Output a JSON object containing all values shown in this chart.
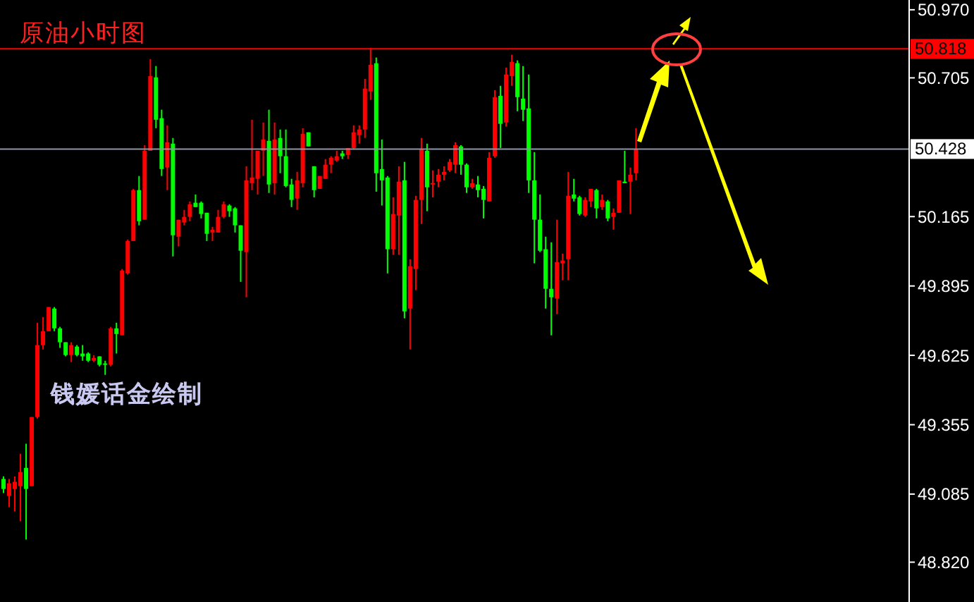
{
  "chart_data": {
    "type": "candlestick",
    "title": "原油小时图",
    "annotations": [
      "钱媛话金绘制"
    ],
    "categories": [
      null,
      null,
      null,
      null,
      null,
      null,
      null,
      null,
      null,
      null,
      null,
      null,
      null,
      null,
      null,
      null,
      null,
      null,
      null,
      null,
      null,
      null,
      null,
      null,
      null,
      null,
      null,
      null,
      null,
      null,
      null,
      null,
      null,
      null,
      null,
      null,
      null,
      null,
      null,
      null,
      null,
      null,
      null,
      null,
      null,
      null,
      null,
      null,
      null,
      null,
      null,
      null,
      null,
      null,
      null,
      null,
      null,
      null,
      null,
      null,
      null,
      null,
      null,
      null,
      null,
      null,
      null,
      null,
      null,
      null,
      null,
      null,
      null,
      null,
      null,
      null,
      null,
      null,
      null,
      null,
      null,
      null,
      null,
      null,
      null,
      null,
      null,
      null,
      null,
      null,
      null,
      null,
      null,
      null,
      null,
      null,
      null,
      null,
      null,
      null,
      null,
      null,
      null,
      null,
      null,
      null,
      null,
      null,
      null,
      null,
      null,
      null,
      null,
      null,
      null,
      null,
      null,
      null,
      null,
      null,
      null,
      null,
      null,
      null,
      null,
      null,
      null,
      null,
      null,
      null,
      null,
      null,
      null,
      null,
      null,
      null,
      null,
      null,
      null,
      null,
      null,
      null,
      null,
      null,
      null,
      null,
      null,
      null,
      null,
      null,
      null,
      null,
      null,
      null,
      null,
      null,
      null,
      null,
      null,
      null,
      null
    ],
    "ohlc": [
      [
        49.144,
        49.154,
        49.089,
        49.105
      ],
      [
        49.078,
        49.144,
        49.034,
        49.127
      ],
      [
        49.105,
        49.154,
        49.017,
        49.133
      ],
      [
        49.116,
        49.242,
        48.979,
        49.171
      ],
      [
        49.187,
        49.281,
        48.908,
        49.105
      ],
      [
        49.116,
        49.385,
        49.116,
        49.385
      ],
      [
        49.385,
        49.752,
        49.379,
        49.665
      ],
      [
        49.665,
        49.774,
        49.648,
        49.719
      ],
      [
        49.719,
        49.813,
        49.719,
        49.813
      ],
      [
        49.807,
        49.813,
        49.719,
        49.73
      ],
      [
        49.73,
        49.736,
        49.654,
        49.676
      ],
      [
        49.676,
        49.676,
        49.621,
        49.626
      ],
      [
        49.626,
        49.676,
        49.599,
        49.665
      ],
      [
        49.659,
        49.665,
        49.621,
        49.626
      ],
      [
        49.632,
        49.665,
        49.604,
        49.621
      ],
      [
        49.632,
        49.637,
        49.599,
        49.604
      ],
      [
        49.604,
        49.626,
        49.599,
        49.615
      ],
      [
        49.621,
        49.621,
        49.582,
        49.588
      ],
      [
        49.593,
        49.604,
        49.549,
        49.588
      ],
      [
        49.588,
        49.736,
        49.582,
        49.73
      ],
      [
        49.73,
        49.752,
        49.632,
        49.708
      ],
      [
        49.703,
        49.961,
        49.703,
        49.955
      ],
      [
        49.944,
        50.076,
        49.939,
        50.07
      ],
      [
        50.07,
        50.273,
        50.07,
        50.268
      ],
      [
        50.268,
        50.323,
        50.131,
        50.147
      ],
      [
        50.153,
        50.443,
        50.153,
        50.421
      ],
      [
        50.421,
        50.778,
        50.421,
        50.712
      ],
      [
        50.707,
        50.751,
        50.509,
        50.542
      ],
      [
        50.548,
        50.581,
        50.323,
        50.35
      ],
      [
        50.356,
        50.52,
        50.268,
        50.454
      ],
      [
        50.449,
        50.471,
        50.01,
        50.092
      ],
      [
        50.087,
        50.153,
        50.049,
        50.153
      ],
      [
        50.142,
        50.191,
        50.131,
        50.164
      ],
      [
        50.164,
        50.224,
        50.147,
        50.213
      ],
      [
        50.219,
        50.251,
        50.202,
        50.202
      ],
      [
        50.219,
        50.224,
        50.158,
        50.175
      ],
      [
        50.18,
        50.18,
        50.07,
        50.098
      ],
      [
        50.103,
        50.125,
        50.07,
        50.114
      ],
      [
        50.103,
        50.191,
        50.103,
        50.164
      ],
      [
        50.164,
        50.224,
        50.158,
        50.213
      ],
      [
        50.208,
        50.213,
        50.164,
        50.186
      ],
      [
        50.197,
        50.202,
        50.103,
        50.131
      ],
      [
        50.131,
        50.131,
        49.911,
        50.032
      ],
      [
        50.027,
        50.361,
        49.851,
        50.306
      ],
      [
        50.295,
        50.542,
        50.268,
        50.317
      ],
      [
        50.312,
        50.421,
        50.251,
        50.421
      ],
      [
        50.421,
        50.531,
        50.323,
        50.465
      ],
      [
        50.46,
        50.581,
        50.257,
        50.29
      ],
      [
        50.295,
        50.531,
        50.251,
        50.465
      ],
      [
        50.471,
        50.504,
        50.334,
        50.4
      ],
      [
        50.4,
        50.504,
        50.279,
        50.284
      ],
      [
        50.29,
        50.312,
        50.202,
        50.23
      ],
      [
        50.235,
        50.339,
        50.191,
        50.306
      ],
      [
        50.295,
        50.509,
        50.279,
        50.487
      ],
      [
        50.493,
        50.493,
        50.438,
        50.438
      ],
      [
        50.361,
        50.361,
        50.24,
        50.268
      ],
      [
        50.273,
        50.323,
        50.273,
        50.323
      ],
      [
        50.312,
        50.389,
        50.312,
        50.367
      ],
      [
        50.367,
        50.4,
        50.334,
        50.394
      ],
      [
        50.383,
        50.421,
        50.378,
        50.4
      ],
      [
        50.411,
        50.421,
        50.389,
        50.4
      ],
      [
        50.405,
        50.432,
        50.389,
        50.432
      ],
      [
        50.432,
        50.52,
        50.427,
        50.493
      ],
      [
        50.482,
        50.52,
        50.449,
        50.504
      ],
      [
        50.504,
        50.701,
        50.471,
        50.663
      ],
      [
        50.652,
        50.822,
        50.619,
        50.756
      ],
      [
        50.762,
        50.784,
        50.262,
        50.334
      ],
      [
        50.35,
        50.465,
        50.208,
        50.306
      ],
      [
        50.317,
        50.323,
        49.944,
        50.038
      ],
      [
        50.038,
        50.24,
        50.016,
        50.175
      ],
      [
        50.169,
        50.361,
        50.016,
        50.301
      ],
      [
        50.306,
        50.378,
        49.769,
        49.796
      ],
      [
        49.807,
        49.999,
        49.648,
        49.972
      ],
      [
        49.961,
        50.246,
        49.879,
        50.23
      ],
      [
        50.23,
        50.471,
        50.136,
        50.427
      ],
      [
        50.421,
        50.449,
        50.186,
        50.279
      ],
      [
        50.29,
        50.345,
        50.24,
        50.295
      ],
      [
        50.301,
        50.35,
        50.279,
        50.328
      ],
      [
        50.328,
        50.361,
        50.306,
        50.339
      ],
      [
        50.345,
        50.389,
        50.339,
        50.378
      ],
      [
        50.367,
        50.454,
        50.334,
        50.443
      ],
      [
        50.438,
        50.443,
        50.328,
        50.367
      ],
      [
        50.367,
        50.372,
        50.257,
        50.279
      ],
      [
        50.279,
        50.312,
        50.273,
        50.295
      ],
      [
        50.29,
        50.323,
        50.24,
        50.268
      ],
      [
        50.273,
        50.284,
        50.158,
        50.23
      ],
      [
        50.224,
        50.416,
        50.224,
        50.394
      ],
      [
        50.4,
        50.657,
        50.394,
        50.63
      ],
      [
        50.635,
        50.674,
        50.432,
        50.526
      ],
      [
        50.531,
        50.745,
        50.515,
        50.718
      ],
      [
        50.712,
        50.795,
        50.674,
        50.767
      ],
      [
        50.762,
        50.773,
        50.575,
        50.63
      ],
      [
        50.624,
        50.751,
        50.537,
        50.581
      ],
      [
        50.586,
        50.718,
        50.257,
        50.306
      ],
      [
        50.306,
        50.416,
        49.983,
        50.153
      ],
      [
        50.153,
        50.251,
        50.027,
        50.032
      ],
      [
        50.038,
        50.087,
        49.807,
        49.884
      ],
      [
        49.884,
        50.065,
        49.703,
        49.851
      ],
      [
        49.846,
        50.153,
        49.785,
        49.988
      ],
      [
        49.983,
        50.021,
        49.917,
        49.994
      ],
      [
        49.999,
        50.339,
        49.917,
        50.246
      ],
      [
        50.251,
        50.312,
        50.224,
        50.235
      ],
      [
        50.24,
        50.246,
        50.169,
        50.175
      ],
      [
        50.169,
        50.24,
        50.164,
        50.23
      ],
      [
        50.224,
        50.273,
        50.202,
        50.273
      ],
      [
        50.268,
        50.273,
        50.158,
        50.197
      ],
      [
        50.202,
        50.251,
        50.191,
        50.23
      ],
      [
        50.224,
        50.23,
        50.147,
        50.158
      ],
      [
        50.164,
        50.197,
        50.114,
        50.18
      ],
      [
        50.18,
        50.306,
        50.18,
        50.306
      ],
      [
        50.301,
        50.421,
        50.295,
        50.295
      ],
      [
        50.301,
        50.356,
        50.175,
        50.328
      ],
      [
        50.334,
        50.509,
        50.306,
        50.427
      ],
      null,
      null,
      null,
      null,
      null,
      null,
      null,
      null,
      null,
      null,
      null,
      null,
      null,
      null,
      null,
      null,
      null,
      null,
      null,
      null,
      null,
      null,
      null,
      null,
      null,
      null,
      null,
      null,
      null,
      null,
      null,
      null,
      null,
      null,
      null,
      null,
      null,
      null,
      null,
      null,
      null,
      null,
      null,
      null,
      null,
      null,
      null,
      null
    ],
    "colors": [
      "#00ff00",
      "#ff0000",
      "#ff0000",
      "#ff0000",
      "#00ff00",
      "#ff0000",
      "#ff0000",
      "#ff0000",
      "#ff0000",
      "#00ff00",
      "#00ff00",
      "#00ff00",
      "#ff0000",
      "#00ff00",
      "#00ff00",
      "#00ff00",
      "#ff0000",
      "#00ff00",
      "#00ff00",
      "#ff0000",
      "#00ff00",
      "#ff0000",
      "#ff0000",
      "#ff0000",
      "#00ff00",
      "#ff0000",
      "#ff0000",
      "#00ff00",
      "#00ff00",
      "#ff0000",
      "#00ff00",
      "#ff0000",
      "#ff0000",
      "#ff0000",
      "#00ff00",
      "#00ff00",
      "#00ff00",
      "#ff0000",
      "#ff0000",
      "#ff0000",
      "#00ff00",
      "#00ff00",
      "#00ff00",
      "#ff0000",
      "#ff0000",
      "#ff0000",
      "#ff0000",
      "#00ff00",
      "#ff0000",
      "#00ff00",
      "#00ff00",
      "#00ff00",
      "#ff0000",
      "#ff0000",
      "#00ff00",
      "#00ff00",
      "#ff0000",
      "#ff0000",
      "#ff0000",
      "#ff0000",
      "#00ff00",
      "#ff0000",
      "#ff0000",
      "#ff0000",
      "#ff0000",
      "#ff0000",
      "#00ff00",
      "#00ff00",
      "#00ff00",
      "#ff0000",
      "#ff0000",
      "#00ff00",
      "#ff0000",
      "#ff0000",
      "#ff0000",
      "#00ff00",
      "#ff0000",
      "#ff0000",
      "#ff0000",
      "#ff0000",
      "#ff0000",
      "#00ff00",
      "#00ff00",
      "#ff0000",
      "#00ff00",
      "#00ff00",
      "#ff0000",
      "#ff0000",
      "#00ff00",
      "#ff0000",
      "#ff0000",
      "#00ff00",
      "#00ff00",
      "#00ff00",
      "#00ff00",
      "#00ff00",
      "#00ff00",
      "#00ff00",
      "#ff0000",
      "#ff0000",
      "#ff0000",
      "#00ff00",
      "#00ff00",
      "#ff0000",
      "#ff0000",
      "#00ff00",
      "#ff0000",
      "#00ff00",
      "#ff0000",
      "#ff0000",
      "#00ff00",
      "#ff0000",
      "#ff0000",
      null,
      null,
      null,
      null,
      null,
      null,
      null,
      null,
      null,
      null,
      null,
      null,
      null,
      null,
      null,
      null,
      null,
      null,
      null,
      null,
      null,
      null,
      null,
      null,
      null,
      null,
      null,
      null,
      null,
      null,
      null,
      null,
      null,
      null,
      null,
      null,
      null,
      null,
      null,
      null,
      null,
      null,
      null,
      null,
      null,
      null,
      null,
      null
    ],
    "ylim": [
      48.665,
      51.008
    ],
    "yticks": [
      {
        "value": 50.97,
        "label": "50.970"
      },
      {
        "value": 50.705,
        "label": "50.705"
      },
      {
        "value": 50.165,
        "label": "50.165"
      },
      {
        "value": 49.895,
        "label": "49.895"
      },
      {
        "value": 49.625,
        "label": "49.625"
      },
      {
        "value": 49.355,
        "label": "49.355"
      },
      {
        "value": 49.085,
        "label": "49.085"
      },
      {
        "value": 48.82,
        "label": "48.820"
      }
    ],
    "ref_lines": [
      {
        "axis": "y",
        "value": 50.818,
        "label": "50.818",
        "color": "#ff0000"
      },
      {
        "axis": "y",
        "value": 50.428,
        "label": "50.428",
        "color": "#8c96a8"
      }
    ],
    "tick_labels": "y"
  }
}
